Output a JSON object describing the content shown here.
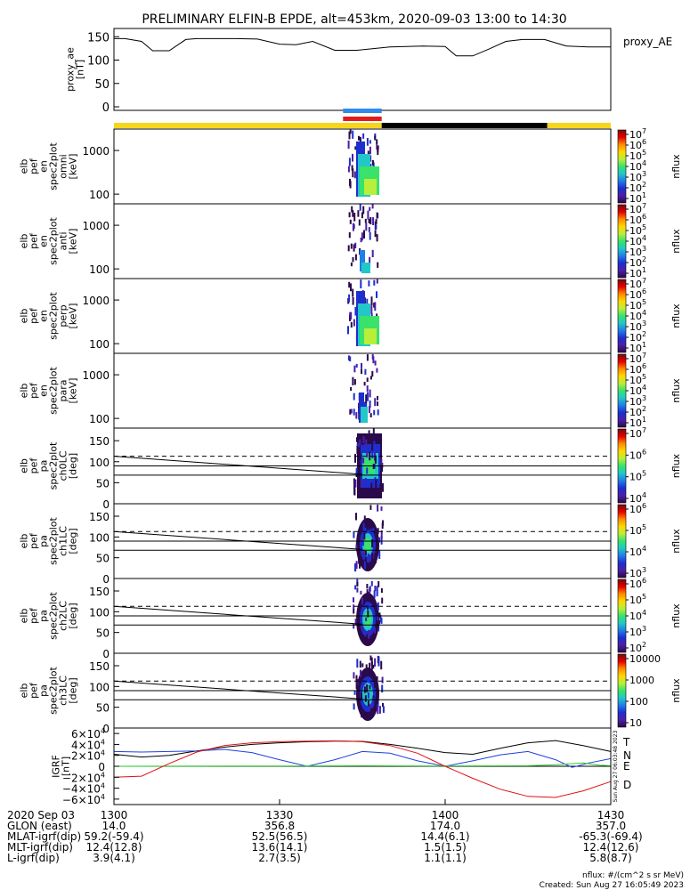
{
  "title": "PRELIMINARY ELFIN-B EPDE, alt=453km, 2020-09-03 13:00 to 14:30",
  "colors": {
    "yellow": "#f7d51d",
    "black": "#000000",
    "blue_bar": "#2f8bef",
    "red_bar": "#e21b1b",
    "grf_T": "#000000",
    "grf_N": "#1f3fe0",
    "grf_E": "#2ecc2e",
    "grf_D": "#e01010"
  },
  "colorbar_stops": [
    "#7a0a0a",
    "#e60000",
    "#ff8c00",
    "#ffd700",
    "#b9ee3a",
    "#39e26a",
    "#22c7c7",
    "#1f7ee8",
    "#1e2fd0",
    "#4b1fa6",
    "#2a0a4a"
  ],
  "chart_data": [
    {
      "type": "line",
      "panel": "proxy_ae",
      "ylabel": [
        "proxy_ae",
        "[nT]"
      ],
      "legend": "proxy_AE",
      "ylim": [
        0,
        160
      ],
      "yticks": [
        "150",
        "100",
        "50",
        "0"
      ],
      "x": [
        1300,
        1302,
        1305,
        1307,
        1310,
        1313,
        1315,
        1318,
        1322,
        1326,
        1330,
        1333,
        1336,
        1340,
        1344,
        1350,
        1356,
        1400,
        1402,
        1405,
        1408,
        1411,
        1414,
        1418,
        1422,
        1426,
        1430
      ],
      "y": [
        146,
        146,
        140,
        120,
        120,
        144,
        146,
        146,
        146,
        145,
        134,
        133,
        140,
        121,
        121,
        128,
        130,
        129,
        109,
        109,
        124,
        140,
        144,
        144,
        130,
        128,
        128
      ]
    },
    {
      "type": "bar",
      "panel": "orbit_bars",
      "segments": [
        {
          "color": "yellow",
          "start": 1300,
          "end": 1348.5
        },
        {
          "color": "black",
          "start": 1348.5,
          "end": 1418.5
        },
        {
          "color": "yellow",
          "start": 1418.5,
          "end": 1430
        }
      ],
      "markers": [
        {
          "color": "blue_bar",
          "start": 1341.5,
          "end": 1348.5
        },
        {
          "color": "red_bar",
          "start": 1341.5,
          "end": 1348.5
        }
      ]
    },
    {
      "type": "heatmap",
      "panel": "en_omni",
      "ylabel": [
        "elb",
        "pef",
        "en",
        "spec2plot",
        "omni",
        "[keV]"
      ],
      "yticks": [
        "1000",
        "100"
      ],
      "cbar_ticks": [
        "10",
        "10",
        "10",
        "10",
        "10",
        "10",
        "10"
      ],
      "cbar_exp": [
        "7",
        "6",
        "5",
        "4",
        "3",
        "2",
        "1"
      ],
      "cbar_label": "nflux"
    },
    {
      "type": "heatmap",
      "panel": "en_anti",
      "ylabel": [
        "elb",
        "pef",
        "en",
        "spec2plot",
        "anti",
        "[keV]"
      ],
      "yticks": [
        "1000",
        "100"
      ],
      "cbar_ticks": [
        "10",
        "10",
        "10",
        "10",
        "10",
        "10",
        "10"
      ],
      "cbar_exp": [
        "7",
        "6",
        "5",
        "4",
        "3",
        "2",
        "1"
      ],
      "cbar_label": "nflux"
    },
    {
      "type": "heatmap",
      "panel": "en_perp",
      "ylabel": [
        "elb",
        "pef",
        "en",
        "spec2plot",
        "perp",
        "[keV]"
      ],
      "yticks": [
        "1000",
        "100"
      ],
      "cbar_ticks": [
        "10",
        "10",
        "10",
        "10",
        "10",
        "10",
        "10"
      ],
      "cbar_exp": [
        "7",
        "6",
        "5",
        "4",
        "3",
        "2",
        "1"
      ],
      "cbar_label": "nflux"
    },
    {
      "type": "heatmap",
      "panel": "en_para",
      "ylabel": [
        "elb",
        "pef",
        "en",
        "spec2plot",
        "para",
        "[keV]"
      ],
      "yticks": [
        "1000",
        "100"
      ],
      "cbar_ticks": [
        "10",
        "10",
        "10",
        "10",
        "10",
        "10",
        "10"
      ],
      "cbar_exp": [
        "7",
        "6",
        "5",
        "4",
        "3",
        "2",
        "1"
      ],
      "cbar_label": "nflux"
    },
    {
      "type": "heatmap",
      "panel": "pa_ch0LC",
      "ylabel": [
        "elb",
        "pef",
        "pa",
        "spec2plot",
        "ch0LC",
        "[deg]"
      ],
      "yticks": [
        "150",
        "100",
        "50",
        "0"
      ],
      "cbar_ticks": [
        "10",
        "10",
        "10",
        "10"
      ],
      "cbar_exp": [
        "7",
        "6",
        "5",
        "4"
      ],
      "cbar_label": "nflux",
      "lc_line": {
        "x": [
          1300,
          1345
        ],
        "y": [
          113,
          70
        ]
      },
      "dashed_y": 113,
      "solid_y": [
        90,
        68
      ]
    },
    {
      "type": "heatmap",
      "panel": "pa_ch1LC",
      "ylabel": [
        "elb",
        "pef",
        "pa",
        "spec2plot",
        "ch1LC",
        "[deg]"
      ],
      "yticks": [
        "150",
        "100",
        "50",
        "0"
      ],
      "cbar_ticks": [
        "10",
        "10",
        "10",
        "10"
      ],
      "cbar_exp": [
        "6",
        "5",
        "4",
        "3"
      ],
      "cbar_label": "nflux",
      "lc_line": {
        "x": [
          1300,
          1345
        ],
        "y": [
          113,
          70
        ]
      },
      "dashed_y": 113,
      "solid_y": [
        90,
        68
      ]
    },
    {
      "type": "heatmap",
      "panel": "pa_ch2LC",
      "ylabel": [
        "elb",
        "pef",
        "pa",
        "spec2plot",
        "ch2LC",
        "[deg]"
      ],
      "yticks": [
        "150",
        "100",
        "50",
        "0"
      ],
      "cbar_ticks": [
        "10",
        "10",
        "10",
        "10",
        "10"
      ],
      "cbar_exp": [
        "6",
        "5",
        "4",
        "3",
        "2"
      ],
      "cbar_label": "nflux",
      "lc_line": {
        "x": [
          1300,
          1345
        ],
        "y": [
          113,
          70
        ]
      },
      "dashed_y": 113,
      "solid_y": [
        90,
        68
      ]
    },
    {
      "type": "heatmap",
      "panel": "pa_ch3LC",
      "ylabel": [
        "elb",
        "pef",
        "pa",
        "spec2plot",
        "ch3LC",
        "[deg]"
      ],
      "yticks": [
        "150",
        "100",
        "50",
        "0"
      ],
      "cbar_ticks": [
        "10000",
        "1000",
        "100",
        "10"
      ],
      "cbar_exp": [],
      "cbar_label": "nflux",
      "lc_line": {
        "x": [
          1300,
          1345
        ],
        "y": [
          113,
          70
        ]
      },
      "dashed_y": 113,
      "solid_y": [
        90,
        68
      ]
    },
    {
      "type": "line",
      "panel": "igrf",
      "ylabel": [
        "IGRF",
        "[nT]"
      ],
      "ylim": [
        -70000,
        70000
      ],
      "yticks": [
        {
          "mant": "6",
          "exp": "4"
        },
        {
          "mant": "4",
          "exp": "4"
        },
        {
          "mant": "2",
          "exp": "4"
        },
        {
          "mant": "0",
          "exp": ""
        },
        {
          "mant": "−2",
          "exp": "4"
        },
        {
          "mant": "−4",
          "exp": "4"
        },
        {
          "mant": "−6",
          "exp": "4"
        }
      ],
      "series": [
        {
          "name": "T",
          "color": "grf_T",
          "x": [
            1300,
            1305,
            1310,
            1315,
            1320,
            1325,
            1330,
            1335,
            1340,
            1345,
            1350,
            1355,
            1400,
            1405,
            1410,
            1415,
            1420,
            1425,
            1430
          ],
          "y": [
            22000,
            17000,
            20000,
            28000,
            35000,
            40000,
            43000,
            45000,
            46000,
            45500,
            40000,
            33000,
            25000,
            22000,
            33000,
            43000,
            47000,
            38000,
            27000
          ]
        },
        {
          "name": "N",
          "color": "grf_N",
          "x": [
            1300,
            1305,
            1310,
            1315,
            1320,
            1325,
            1330,
            1335,
            1340,
            1345,
            1350,
            1355,
            1400,
            1405,
            1410,
            1415,
            1420,
            1423,
            1426,
            1430
          ],
          "y": [
            27000,
            26000,
            27000,
            28000,
            31000,
            25000,
            12000,
            0,
            12000,
            27000,
            24000,
            10000,
            0,
            10000,
            21000,
            27000,
            12000,
            -2000,
            6000,
            14000
          ]
        },
        {
          "name": "E",
          "color": "grf_E",
          "x": [
            1300,
            1330,
            1345,
            1400,
            1415,
            1420,
            1425,
            1428,
            1430
          ],
          "y": [
            0,
            500,
            1000,
            500,
            1000,
            3000,
            6000,
            2000,
            1000
          ]
        },
        {
          "name": "D",
          "color": "grf_D",
          "x": [
            1300,
            1305,
            1310,
            1315,
            1320,
            1325,
            1330,
            1335,
            1340,
            1345,
            1350,
            1355,
            1400,
            1405,
            1410,
            1415,
            1420,
            1425,
            1430
          ],
          "y": [
            -20000,
            -18000,
            5000,
            26000,
            38000,
            43000,
            45000,
            46000,
            46500,
            45000,
            38000,
            24000,
            0,
            -22000,
            -42000,
            -55000,
            -57000,
            -45000,
            -28000
          ]
        }
      ],
      "side_text": "Sun Aug 27 06:03:48 2023"
    }
  ],
  "xaxis": {
    "row_labels": [
      "2020 Sep 03",
      "GLON (east)",
      "MLAT-igrf(dip)",
      "MLT-igrf(dip)",
      "L-igrf(dip)"
    ],
    "columns": [
      [
        "1300",
        "14.0",
        "59.2(-59.4)",
        "12.4(12.8)",
        "3.9(4.1)"
      ],
      [
        "1330",
        "356.8",
        "52.5(56.5)",
        "13.6(14.1)",
        "2.7(3.5)"
      ],
      [
        "1400",
        "174.0",
        "14.4(6.1)",
        "1.5(1.5)",
        "1.1(1.1)"
      ],
      [
        "1430",
        "357.0",
        "-65.3(-69.4)",
        "12.4(12.6)",
        "5.8(8.7)"
      ]
    ]
  },
  "footer": {
    "units": "nflux: #/(cm^2 s sr MeV)",
    "created": "Created: Sun Aug 27 16:05:49 2023"
  }
}
